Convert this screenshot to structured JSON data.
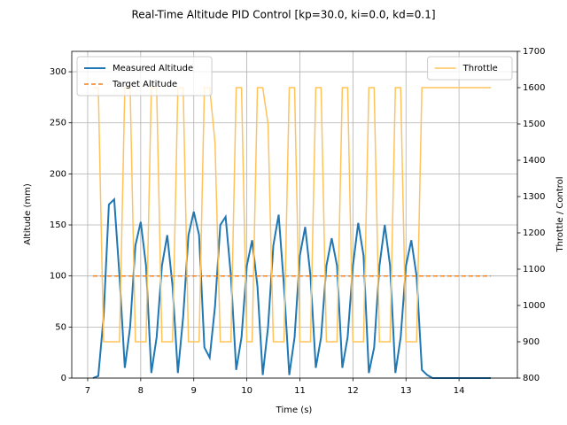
{
  "chart_data": {
    "type": "line",
    "title": "Real-Time Altitude PID Control [kp=30.0, ki=0.0, kd=0.1]",
    "x_label": "Time (s)",
    "y_label": "Altitude (mm)",
    "y2_label": "Throttle / Control",
    "x": [
      7.1,
      7.2,
      7.3,
      7.4,
      7.5,
      7.6,
      7.7,
      7.8,
      7.9,
      8.0,
      8.1,
      8.2,
      8.3,
      8.4,
      8.5,
      8.6,
      8.7,
      8.8,
      8.9,
      9.0,
      9.1,
      9.2,
      9.3,
      9.4,
      9.5,
      9.6,
      9.7,
      9.8,
      9.9,
      10.0,
      10.1,
      10.2,
      10.3,
      10.4,
      10.5,
      10.6,
      10.7,
      10.8,
      10.9,
      11.0,
      11.1,
      11.2,
      11.3,
      11.4,
      11.5,
      11.6,
      11.7,
      11.8,
      11.9,
      12.0,
      12.1,
      12.2,
      12.3,
      12.4,
      12.5,
      12.6,
      12.7,
      12.8,
      12.9,
      13.0,
      13.1,
      13.2,
      13.3,
      13.4,
      13.5,
      13.6,
      13.7,
      13.8,
      13.9,
      14.0,
      14.1,
      14.2,
      14.3,
      14.4,
      14.5,
      14.6
    ],
    "series": [
      {
        "name": "Measured Altitude",
        "color": "#1f77b4",
        "width": 2,
        "dashed": false,
        "values": [
          0,
          2,
          60,
          170,
          175,
          100,
          10,
          50,
          130,
          153,
          110,
          5,
          40,
          110,
          140,
          90,
          5,
          60,
          140,
          163,
          140,
          30,
          20,
          70,
          150,
          158,
          100,
          8,
          40,
          110,
          135,
          90,
          3,
          50,
          130,
          160,
          90,
          3,
          40,
          120,
          148,
          100,
          10,
          40,
          110,
          137,
          110,
          10,
          40,
          110,
          152,
          120,
          5,
          30,
          110,
          150,
          110,
          5,
          40,
          110,
          135,
          100,
          8,
          3,
          0,
          0,
          0,
          0,
          0,
          0,
          0,
          0,
          0,
          0,
          0,
          0
        ]
      },
      {
        "name": "Target Altitude",
        "color": "#ff7f0e",
        "width": 1.5,
        "dashed": true,
        "values": [
          100,
          100,
          100,
          100,
          100,
          100,
          100,
          100,
          100,
          100,
          100,
          100,
          100,
          100,
          100,
          100,
          100,
          100,
          100,
          100,
          100,
          100,
          100,
          100,
          100,
          100,
          100,
          100,
          100,
          100,
          100,
          100,
          100,
          100,
          100,
          100,
          100,
          100,
          100,
          100,
          100,
          100,
          100,
          100,
          100,
          100,
          100,
          100,
          100,
          100,
          100,
          100,
          100,
          100,
          100,
          100,
          100,
          100,
          100,
          100,
          100,
          100,
          100,
          100,
          100,
          100,
          100,
          100,
          100,
          100,
          100,
          100,
          100,
          100,
          100,
          100
        ]
      },
      {
        "name": "Throttle",
        "color": "#ffc35c",
        "width": 1.5,
        "dashed": false,
        "axis": "y2",
        "values": [
          1600,
          1600,
          900,
          900,
          900,
          900,
          1600,
          1600,
          900,
          900,
          900,
          1600,
          1600,
          900,
          900,
          900,
          1600,
          1600,
          900,
          900,
          900,
          1600,
          1600,
          1450,
          900,
          900,
          900,
          1600,
          1600,
          900,
          900,
          1600,
          1600,
          1500,
          900,
          900,
          900,
          1600,
          1600,
          900,
          900,
          900,
          1600,
          1600,
          900,
          900,
          900,
          1600,
          1600,
          900,
          900,
          900,
          1600,
          1600,
          900,
          900,
          900,
          1600,
          1600,
          900,
          900,
          900,
          1600,
          1600,
          1600,
          1600,
          1600,
          1600,
          1600,
          1600,
          1600,
          1600,
          1600,
          1600,
          1600,
          1600
        ]
      }
    ],
    "xlim": [
      6.7,
      15.1
    ],
    "xticks": [
      7,
      8,
      9,
      10,
      11,
      12,
      13,
      14
    ],
    "ylim": [
      0,
      320
    ],
    "yticks": [
      0,
      50,
      100,
      150,
      200,
      250,
      300
    ],
    "y2lim": [
      800,
      1700
    ],
    "y2ticks": [
      800,
      900,
      1000,
      1100,
      1200,
      1300,
      1400,
      1500,
      1600,
      1700
    ],
    "grid": true,
    "legend": "upper left",
    "legend2": "upper right"
  }
}
